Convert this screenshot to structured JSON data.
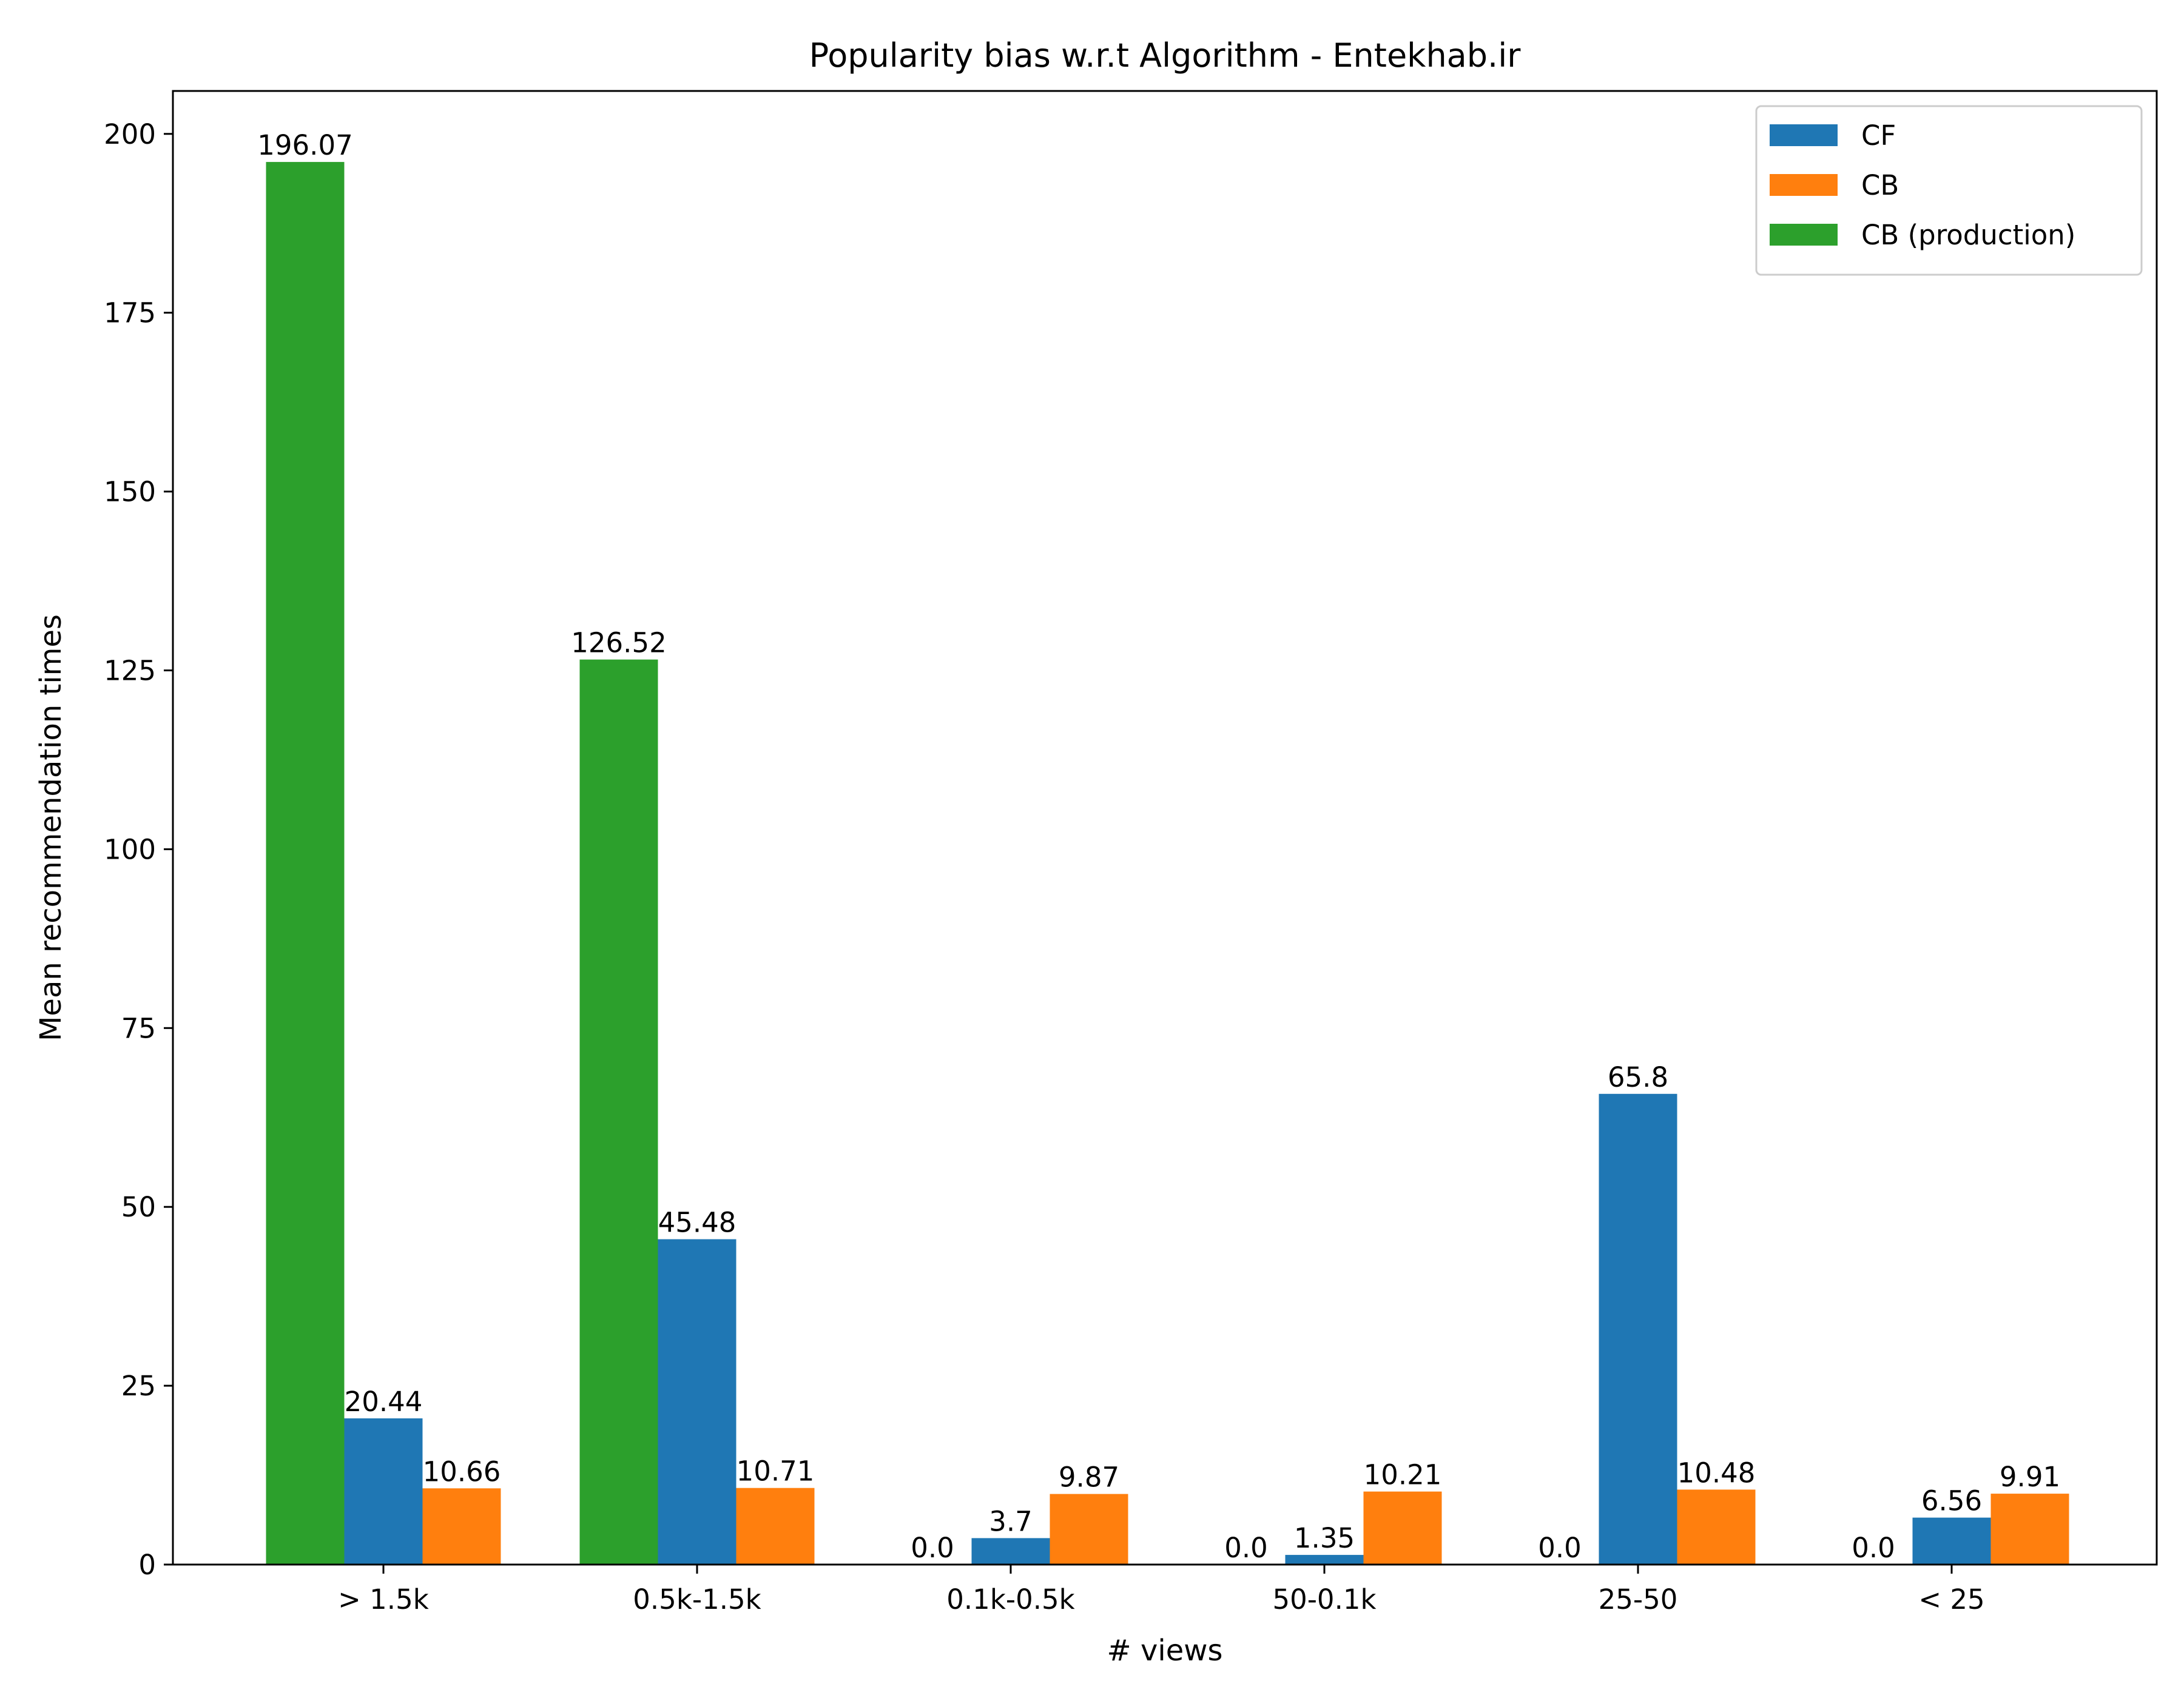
{
  "chart_data": {
    "type": "bar",
    "title": "Popularity bias w.r.t Algorithm - Entekhab.ir",
    "xlabel": "# views",
    "ylabel": "Mean recommendation times",
    "categories": [
      "> 1.5k",
      "0.5k-1.5k",
      "0.1k-0.5k",
      "50-0.1k",
      "25-50",
      "< 25"
    ],
    "ylim": [
      0,
      206
    ],
    "yticks": [
      0,
      25,
      50,
      75,
      100,
      125,
      150,
      175,
      200
    ],
    "grid": false,
    "legend_position": "top-right",
    "series": [
      {
        "name": "CB (production)",
        "color": "#2ca02c",
        "values": [
          196.07,
          126.52,
          0.0,
          0.0,
          0.0,
          0.0
        ],
        "labels": [
          "196.07",
          "126.52",
          "0.0",
          "0.0",
          "0.0",
          "0.0"
        ]
      },
      {
        "name": "CF",
        "color": "#1f77b4",
        "values": [
          20.44,
          45.48,
          3.7,
          1.35,
          65.8,
          6.56
        ],
        "labels": [
          "20.44",
          "45.48",
          "3.7",
          "1.35",
          "65.8",
          "6.56"
        ]
      },
      {
        "name": "CB",
        "color": "#ff7f0e",
        "values": [
          10.66,
          10.71,
          9.87,
          10.21,
          10.48,
          9.91
        ],
        "labels": [
          "10.66",
          "10.71",
          "9.87",
          "10.21",
          "10.48",
          "9.91"
        ]
      }
    ],
    "legend_order": [
      "CF",
      "CB",
      "CB (production)"
    ]
  }
}
